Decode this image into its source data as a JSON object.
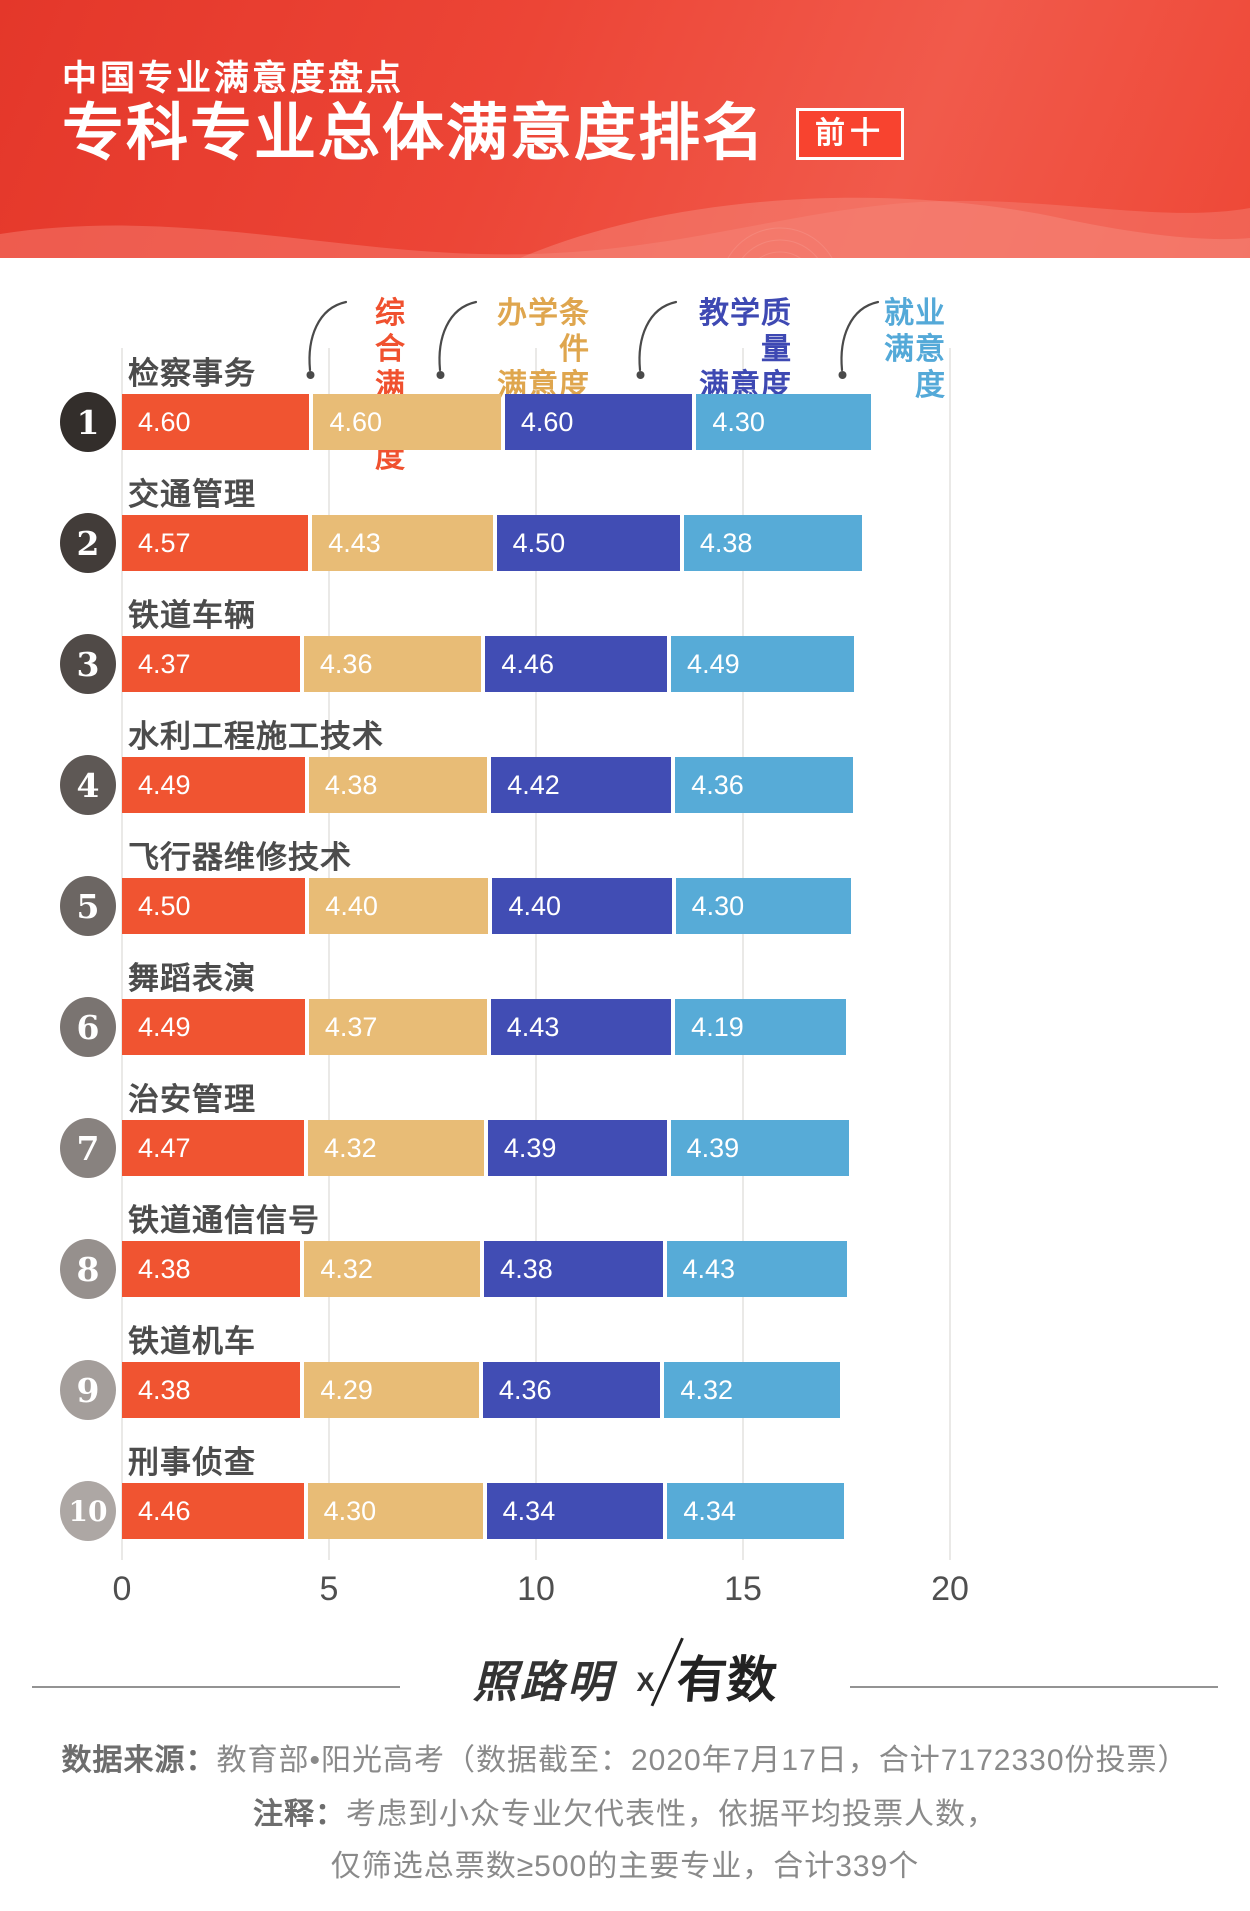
{
  "header": {
    "kicker": "中国专业满意度盘点",
    "title": "专科专业总体满意度排名",
    "badge": "前十",
    "bg_color": "#E8392B",
    "badge_bg": "#F8432F"
  },
  "legend": {
    "items": [
      {
        "line1": "综合",
        "line2": "满意度",
        "color": "#F0512F"
      },
      {
        "line1": "办学条件",
        "line2": "满意度",
        "color": "#DFA64E"
      },
      {
        "line1": "教学质量",
        "line2": "满意度",
        "color": "#3E49B3"
      },
      {
        "line1": "就业",
        "line2": "满意度",
        "color": "#54A9D8"
      }
    ]
  },
  "chart_data": {
    "type": "bar",
    "orientation": "horizontal-stacked",
    "title": "专科专业总体满意度排名（前十）",
    "axis": {
      "min": 0,
      "max": 20,
      "ticks": [
        0,
        5,
        10,
        15,
        20
      ]
    },
    "grid": true,
    "categories": [
      "检察事务",
      "交通管理",
      "铁道车辆",
      "水利工程施工技术",
      "飞行器维修技术",
      "舞蹈表演",
      "治安管理",
      "铁道通信信号",
      "铁道机车",
      "刑事侦查"
    ],
    "ranks": [
      "1",
      "2",
      "3",
      "4",
      "5",
      "6",
      "7",
      "8",
      "9",
      "10"
    ],
    "rank_badge_colors": [
      "#332E2B",
      "#423C39",
      "#504A47",
      "#5E5855",
      "#6C6663",
      "#7A7471",
      "#88827F",
      "#96908D",
      "#A49E9B",
      "#ADA7A4"
    ],
    "series": [
      {
        "name": "综合满意度",
        "color": "#F05431",
        "values": [
          4.6,
          4.57,
          4.37,
          4.49,
          4.5,
          4.49,
          4.47,
          4.38,
          4.38,
          4.46
        ]
      },
      {
        "name": "办学条件满意度",
        "color": "#E8BC76",
        "values": [
          4.6,
          4.43,
          4.36,
          4.38,
          4.4,
          4.37,
          4.32,
          4.32,
          4.29,
          4.3
        ]
      },
      {
        "name": "教学质量满意度",
        "color": "#414DB4",
        "values": [
          4.6,
          4.5,
          4.46,
          4.42,
          4.4,
          4.43,
          4.39,
          4.38,
          4.36,
          4.34
        ]
      },
      {
        "name": "就业满意度",
        "color": "#57ABD7",
        "values": [
          4.3,
          4.38,
          4.49,
          4.36,
          4.3,
          4.19,
          4.39,
          4.43,
          4.32,
          4.34
        ]
      }
    ],
    "value_decimals": 2
  },
  "footer": {
    "logo_left": "照路明",
    "logo_x": "X",
    "logo_right": "有数",
    "source_label": "数据来源：",
    "source_text": "教育部•阳光高考（数据截至：2020年7月17日，合计7172330份投票）",
    "note_label": "注释：",
    "note_line1": "考虑到小众专业欠代表性，依据平均投票人数，",
    "note_line2": "仅筛选总票数≥500的主要专业，合计339个"
  }
}
